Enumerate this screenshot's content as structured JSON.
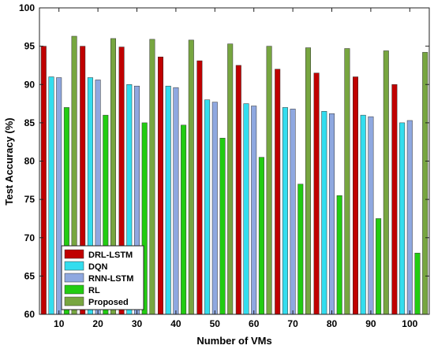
{
  "chart_data": {
    "type": "bar",
    "xlabel": "Number of VMs",
    "ylabel": "Test Accuracy (%)",
    "categories": [
      "10",
      "20",
      "30",
      "40",
      "50",
      "60",
      "70",
      "80",
      "90",
      "100"
    ],
    "ylim": [
      60,
      100
    ],
    "yticks": [
      60,
      65,
      70,
      75,
      80,
      85,
      90,
      95,
      100
    ],
    "legend_position": "bottom-left",
    "grid": false,
    "series": [
      {
        "name": "DRL-LSTM",
        "color": "#c00000",
        "values": [
          95.0,
          95.0,
          94.9,
          93.6,
          93.1,
          92.5,
          92.0,
          91.5,
          91.0,
          90.0
        ]
      },
      {
        "name": "DQN",
        "color": "#33ddee",
        "values": [
          91.0,
          90.9,
          90.0,
          89.8,
          88.0,
          87.5,
          87.0,
          86.5,
          86.0,
          85.0
        ]
      },
      {
        "name": "RNN-LSTM",
        "color": "#8fa8e0",
        "values": [
          90.9,
          90.6,
          89.8,
          89.6,
          87.7,
          87.2,
          86.8,
          86.2,
          85.8,
          85.3
        ]
      },
      {
        "name": "RL",
        "color": "#22cc11",
        "values": [
          87.0,
          86.0,
          85.0,
          84.7,
          83.0,
          80.5,
          77.0,
          75.5,
          72.5,
          68.0
        ]
      },
      {
        "name": "Proposed",
        "color": "#77a640",
        "values": [
          96.3,
          96.0,
          95.9,
          95.8,
          95.3,
          95.0,
          94.8,
          94.7,
          94.4,
          94.2
        ]
      }
    ]
  }
}
